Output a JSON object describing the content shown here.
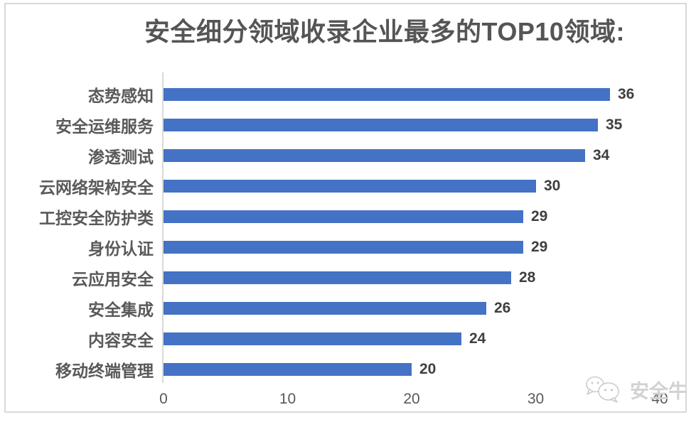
{
  "title": "安全细分领域收录企业最多的TOP10领域:",
  "watermark": {
    "label": "安全牛",
    "icon": "wechat-chat-bubbles-icon"
  },
  "colors": {
    "bar": "#4472C4",
    "title_text": "#555555",
    "category_text": "#595959",
    "value_text": "#3F3F3F",
    "tick_text": "#595959",
    "axis_line": "#D9D9D9",
    "frame_border": "#D9D9D9",
    "watermark_text": "#D2D2D2"
  },
  "chart_data": {
    "type": "bar",
    "orientation": "horizontal",
    "title": "安全细分领域收录企业最多的TOP10领域:",
    "categories": [
      "态势感知",
      "安全运维服务",
      "渗透测试",
      "云网络架构安全",
      "工控安全防护类",
      "身份认证",
      "云应用安全",
      "安全集成",
      "内容安全",
      "移动终端管理"
    ],
    "values": [
      36,
      35,
      34,
      30,
      29,
      29,
      28,
      26,
      24,
      20
    ],
    "xlabel": "",
    "ylabel": "",
    "xlim": [
      0,
      40
    ],
    "xticks": [
      0,
      10,
      20,
      30,
      40
    ],
    "grid": false,
    "data_labels": true,
    "legend": false
  }
}
